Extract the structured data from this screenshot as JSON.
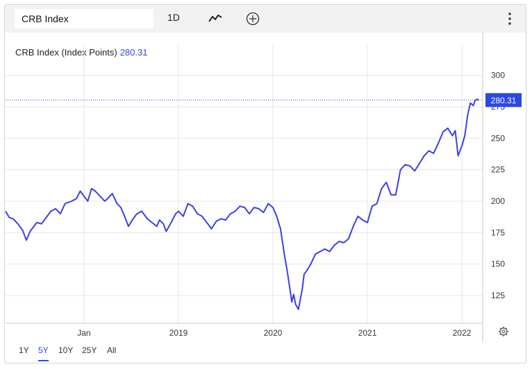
{
  "toolbar": {
    "search_value": "CRB Index",
    "interval_label": "1D",
    "chart_type_icon": "line-chart-icon",
    "add_icon": "plus-circle-icon",
    "menu_icon": "kebab-menu-icon"
  },
  "header": {
    "series_label": "CRB Index (Index Points)",
    "last_value": "280.31"
  },
  "price_label": "280.31",
  "ranges": [
    "1Y",
    "5Y",
    "10Y",
    "25Y",
    "All"
  ],
  "active_range": "5Y",
  "colors": {
    "line": "#3b3fe8",
    "accent": "#2b47e6"
  },
  "chart_data": {
    "type": "line",
    "title": "",
    "xlabel": "",
    "ylabel": "",
    "x_ticks": [
      "Jan",
      "2019",
      "2020",
      "2021",
      "2022"
    ],
    "x_tick_dates": [
      2018.0,
      2019.0,
      2020.0,
      2021.0,
      2022.0
    ],
    "y_ticks": [
      125,
      150,
      175,
      200,
      225,
      250,
      275,
      300
    ],
    "ylim": [
      103,
      313
    ],
    "xlim": [
      2017.17,
      2022.22
    ],
    "grid": true,
    "reference_line": 280.31,
    "series": [
      {
        "x": [
          2017.17,
          2017.21,
          2017.25,
          2017.3,
          2017.35,
          2017.39,
          2017.43,
          2017.47,
          2017.5,
          2017.55,
          2017.6,
          2017.65,
          2017.7,
          2017.75,
          2017.8,
          2017.87,
          2017.92,
          2017.96,
          2018.0,
          2018.04,
          2018.08,
          2018.12,
          2018.17,
          2018.22,
          2018.25,
          2018.3,
          2018.35,
          2018.39,
          2018.43,
          2018.47,
          2018.52,
          2018.56,
          2018.61,
          2018.67,
          2018.72,
          2018.77,
          2018.8,
          2018.84,
          2018.87,
          2018.93,
          2018.97,
          2019.0,
          2019.05,
          2019.1,
          2019.15,
          2019.2,
          2019.25,
          2019.3,
          2019.35,
          2019.4,
          2019.45,
          2019.5,
          2019.55,
          2019.6,
          2019.65,
          2019.7,
          2019.75,
          2019.8,
          2019.85,
          2019.9,
          2019.95,
          2020.0,
          2020.04,
          2020.08,
          2020.12,
          2020.15,
          2020.18,
          2020.2,
          2020.22,
          2020.24,
          2020.27,
          2020.3,
          2020.31,
          2020.33,
          2020.36,
          2020.4,
          2020.45,
          2020.5,
          2020.55,
          2020.6,
          2020.65,
          2020.7,
          2020.75,
          2020.8,
          2020.85,
          2020.9,
          2020.95,
          2021.0,
          2021.05,
          2021.1,
          2021.15,
          2021.2,
          2021.25,
          2021.3,
          2021.35,
          2021.4,
          2021.45,
          2021.5,
          2021.55,
          2021.6,
          2021.65,
          2021.7,
          2021.75,
          2021.8,
          2021.85,
          2021.9,
          2021.93,
          2021.96,
          2022.0,
          2022.03,
          2022.06,
          2022.09,
          2022.12,
          2022.14,
          2022.16,
          2022.18
        ],
        "y": [
          192,
          187,
          186,
          182,
          177,
          169,
          176,
          180,
          183,
          182,
          187,
          192,
          194,
          190,
          198,
          200,
          202,
          208,
          204,
          200,
          210,
          208,
          204,
          200,
          202,
          206,
          198,
          195,
          188,
          180,
          186,
          190,
          192,
          186,
          183,
          180,
          185,
          182,
          176,
          184,
          190,
          192,
          188,
          198,
          196,
          190,
          188,
          183,
          178,
          184,
          186,
          185,
          190,
          192,
          196,
          195,
          190,
          195,
          194,
          191,
          198,
          195,
          188,
          178,
          158,
          145,
          130,
          120,
          126,
          118,
          114,
          126,
          130,
          142,
          145,
          150,
          158,
          160,
          162,
          160,
          165,
          168,
          167,
          170,
          180,
          188,
          185,
          183,
          196,
          198,
          210,
          215,
          205,
          205,
          225,
          229,
          228,
          224,
          230,
          236,
          240,
          238,
          246,
          255,
          258,
          252,
          256,
          236,
          244,
          252,
          268,
          278,
          276,
          280,
          281,
          280.31
        ]
      }
    ]
  }
}
